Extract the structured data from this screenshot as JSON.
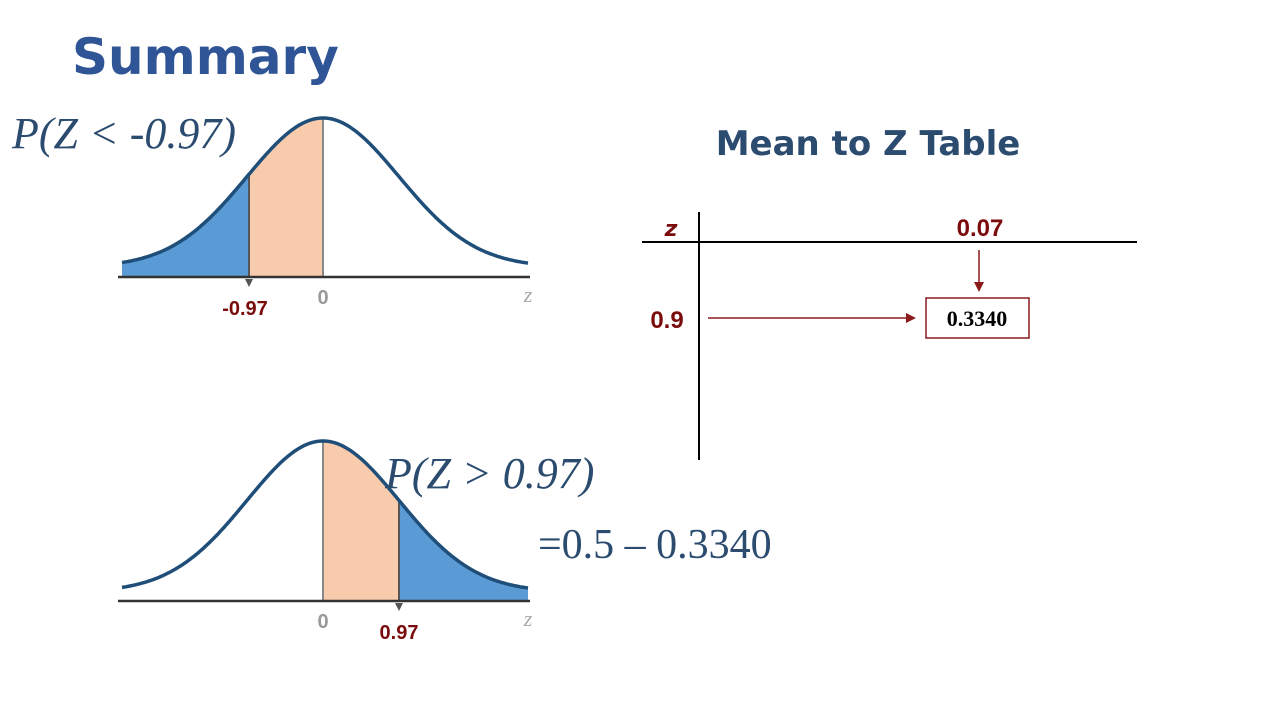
{
  "title": "Summary",
  "top_panel": {
    "formula": "P(Z < -0.97)",
    "cut_label": "-0.97",
    "center_label": "0",
    "axis_label": "z"
  },
  "bottom_panel": {
    "formula": "P(Z > 0.97)",
    "result": "=0.5 – 0.3340",
    "center_label": "0",
    "cut_label": "0.97",
    "axis_label": "z"
  },
  "table": {
    "title": "Mean to Z Table",
    "z_header": "z",
    "column_header": "0.07",
    "row_header": "0.9",
    "cell": "0.3340"
  }
}
